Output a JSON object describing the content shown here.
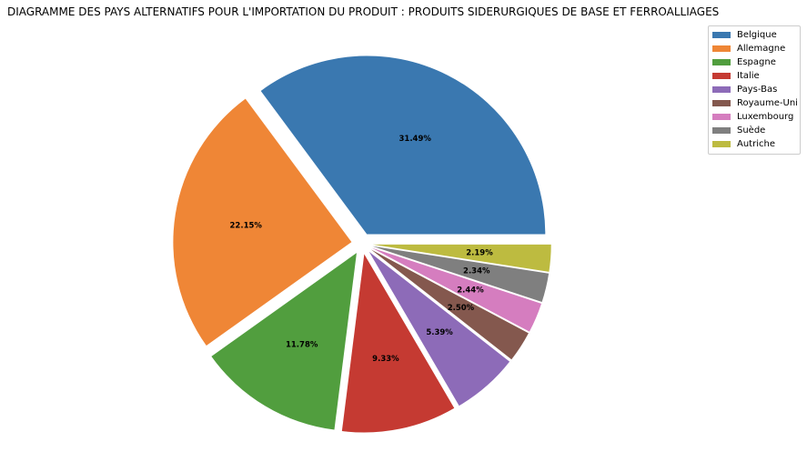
{
  "chart_data": {
    "type": "pie",
    "title": "DIAGRAMME DES PAYS ALTERNATIFS POUR L'IMPORTATION DU PRODUIT : PRODUITS SIDERURGIQUES DE BASE ET FERROALLIAGES",
    "labels": [
      "Belgique",
      "Allemagne",
      "Espagne",
      "Italie",
      "Pays-Bas",
      "Royaume-Uni",
      "Luxembourg",
      "Suède",
      "Autriche"
    ],
    "values": [
      31.49,
      22.15,
      11.78,
      9.33,
      5.39,
      2.5,
      2.44,
      2.34,
      2.19
    ],
    "value_labels": [
      "31.49%",
      "22.15%",
      "11.78%",
      "9.33%",
      "5.39%",
      "2.50%",
      "2.44%",
      "2.34%",
      "2.19%"
    ],
    "colors": [
      "#3a78b0",
      "#ef8636",
      "#519e3e",
      "#c53a32",
      "#8d6bb8",
      "#84584e",
      "#d57dbf",
      "#7f7f7f",
      "#bdbb40"
    ],
    "start_angle_deg": 0,
    "direction": "counterclockwise",
    "exploded": true,
    "legend_position": "top-right"
  }
}
